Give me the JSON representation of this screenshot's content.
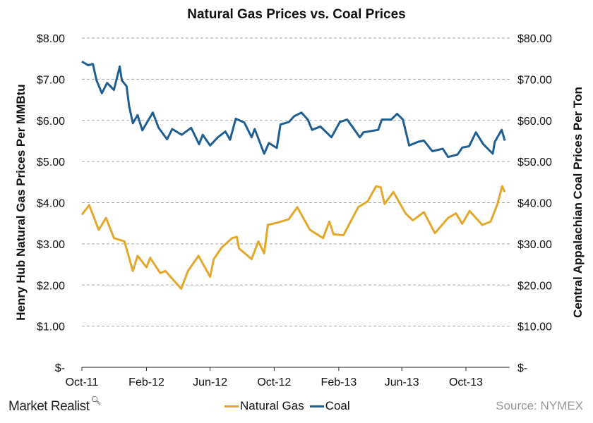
{
  "chart_data": {
    "type": "line",
    "title": "Natural Gas Prices vs. Coal Prices",
    "ylabel_left": "Henry Hub Natural Gas Prices Per MMBtu",
    "ylabel_right": "Central Appalachian Coal Prices Per Ton",
    "ylim_left": [
      0,
      8
    ],
    "ylim_right": [
      0,
      80
    ],
    "yticks_left": [
      "$-",
      "$1.00",
      "$2.00",
      "$3.00",
      "$4.00",
      "$5.00",
      "$6.00",
      "$7.00",
      "$8.00"
    ],
    "yticks_right": [
      "$-",
      "$10.00",
      "$20.00",
      "$30.00",
      "$40.00",
      "$50.00",
      "$60.00",
      "$70.00",
      "$80.00"
    ],
    "xticks": [
      {
        "date": "2011-10-01",
        "label": "Oct-11"
      },
      {
        "date": "2012-02-01",
        "label": "Feb-12"
      },
      {
        "date": "2012-06-01",
        "label": "Jun-12"
      },
      {
        "date": "2012-10-01",
        "label": "Oct-12"
      },
      {
        "date": "2013-02-01",
        "label": "Feb-13"
      },
      {
        "date": "2013-06-01",
        "label": "Jun-13"
      },
      {
        "date": "2013-10-01",
        "label": "Oct-13"
      }
    ],
    "xlim": [
      "2011-10-01",
      "2013-12-20"
    ],
    "grid": "horizontal dashed",
    "legend_position": "bottom",
    "series": [
      {
        "name": "Natural Gas",
        "axis": "left",
        "color": "#E3A82B",
        "x": [
          "2011-10-01",
          "2011-10-15",
          "2011-11-02",
          "2011-11-16",
          "2011-12-01",
          "2011-12-21",
          "2012-01-06",
          "2012-01-15",
          "2012-02-01",
          "2012-02-08",
          "2012-02-27",
          "2012-03-08",
          "2012-03-24",
          "2012-04-07",
          "2012-04-20",
          "2012-05-10",
          "2012-06-01",
          "2012-06-08",
          "2012-06-23",
          "2012-07-13",
          "2012-07-22",
          "2012-07-26",
          "2012-08-19",
          "2012-09-01",
          "2012-09-12",
          "2012-09-19",
          "2012-10-06",
          "2012-10-29",
          "2012-11-14",
          "2012-12-08",
          "2013-01-02",
          "2013-01-14",
          "2013-01-22",
          "2013-02-10",
          "2013-03-10",
          "2013-03-28",
          "2013-04-13",
          "2013-04-22",
          "2013-04-29",
          "2013-05-16",
          "2013-06-08",
          "2013-06-22",
          "2013-07-13",
          "2013-08-03",
          "2013-08-28",
          "2013-09-12",
          "2013-09-24",
          "2013-10-08",
          "2013-11-01",
          "2013-11-17",
          "2013-11-30",
          "2013-12-09",
          "2013-12-14"
        ],
        "y": [
          3.71,
          3.94,
          3.34,
          3.63,
          3.14,
          3.06,
          2.34,
          2.71,
          2.43,
          2.66,
          2.29,
          2.34,
          2.11,
          1.91,
          2.34,
          2.71,
          2.2,
          2.63,
          2.91,
          3.14,
          3.17,
          2.89,
          2.63,
          3.06,
          2.77,
          3.46,
          3.51,
          3.6,
          3.89,
          3.34,
          3.14,
          3.54,
          3.23,
          3.21,
          3.89,
          4.03,
          4.4,
          4.37,
          3.97,
          4.26,
          3.74,
          3.57,
          3.77,
          3.26,
          3.63,
          3.74,
          3.49,
          3.8,
          3.46,
          3.54,
          3.97,
          4.4,
          4.26
        ]
      },
      {
        "name": "Coal",
        "axis": "right",
        "color": "#1F5E91",
        "x": [
          "2011-10-01",
          "2011-10-13",
          "2011-10-22",
          "2011-10-29",
          "2011-11-08",
          "2011-11-18",
          "2011-12-01",
          "2011-12-12",
          "2011-12-16",
          "2011-12-25",
          "2011-12-30",
          "2012-01-06",
          "2012-01-15",
          "2012-01-24",
          "2012-02-13",
          "2012-02-24",
          "2012-03-11",
          "2012-03-21",
          "2012-04-08",
          "2012-04-26",
          "2012-05-11",
          "2012-05-18",
          "2012-06-01",
          "2012-06-16",
          "2012-06-30",
          "2012-07-09",
          "2012-07-20",
          "2012-08-05",
          "2012-08-19",
          "2012-08-25",
          "2012-09-12",
          "2012-09-21",
          "2012-10-06",
          "2012-10-13",
          "2012-10-29",
          "2012-11-08",
          "2012-11-22",
          "2012-12-04",
          "2012-12-12",
          "2012-12-28",
          "2013-01-18",
          "2013-02-03",
          "2013-02-17",
          "2013-03-13",
          "2013-03-20",
          "2013-04-17",
          "2013-04-24",
          "2013-05-12",
          "2013-05-23",
          "2013-06-03",
          "2013-06-15",
          "2013-07-02",
          "2013-07-13",
          "2013-07-29",
          "2013-08-18",
          "2013-08-28",
          "2013-09-15",
          "2013-09-24",
          "2013-10-07",
          "2013-10-20",
          "2013-11-03",
          "2013-11-21",
          "2013-11-25",
          "2013-12-08",
          "2013-12-14"
        ],
        "y": [
          74.3,
          73.4,
          73.7,
          69.7,
          66.6,
          69.1,
          67.4,
          73.1,
          69.7,
          68.3,
          63.4,
          59.3,
          61.3,
          57.6,
          61.9,
          58.2,
          55.4,
          57.9,
          56.5,
          58.2,
          54.2,
          56.5,
          53.9,
          55.9,
          57.3,
          55.3,
          60.4,
          59.5,
          55.9,
          57.9,
          51.9,
          54.5,
          53.3,
          59.0,
          59.6,
          61.0,
          61.9,
          60.2,
          57.7,
          58.5,
          55.9,
          59.6,
          60.2,
          55.9,
          57.1,
          57.7,
          60.2,
          60.2,
          61.6,
          60.2,
          53.9,
          54.8,
          55.1,
          52.5,
          53.1,
          51.1,
          51.7,
          53.4,
          53.7,
          57.1,
          54.2,
          51.9,
          54.8,
          57.7,
          55.1
        ]
      }
    ]
  },
  "footer": {
    "brand": "Market Realist",
    "brand_icon": "magnifier-icon",
    "source": "Source: NYMEX"
  }
}
